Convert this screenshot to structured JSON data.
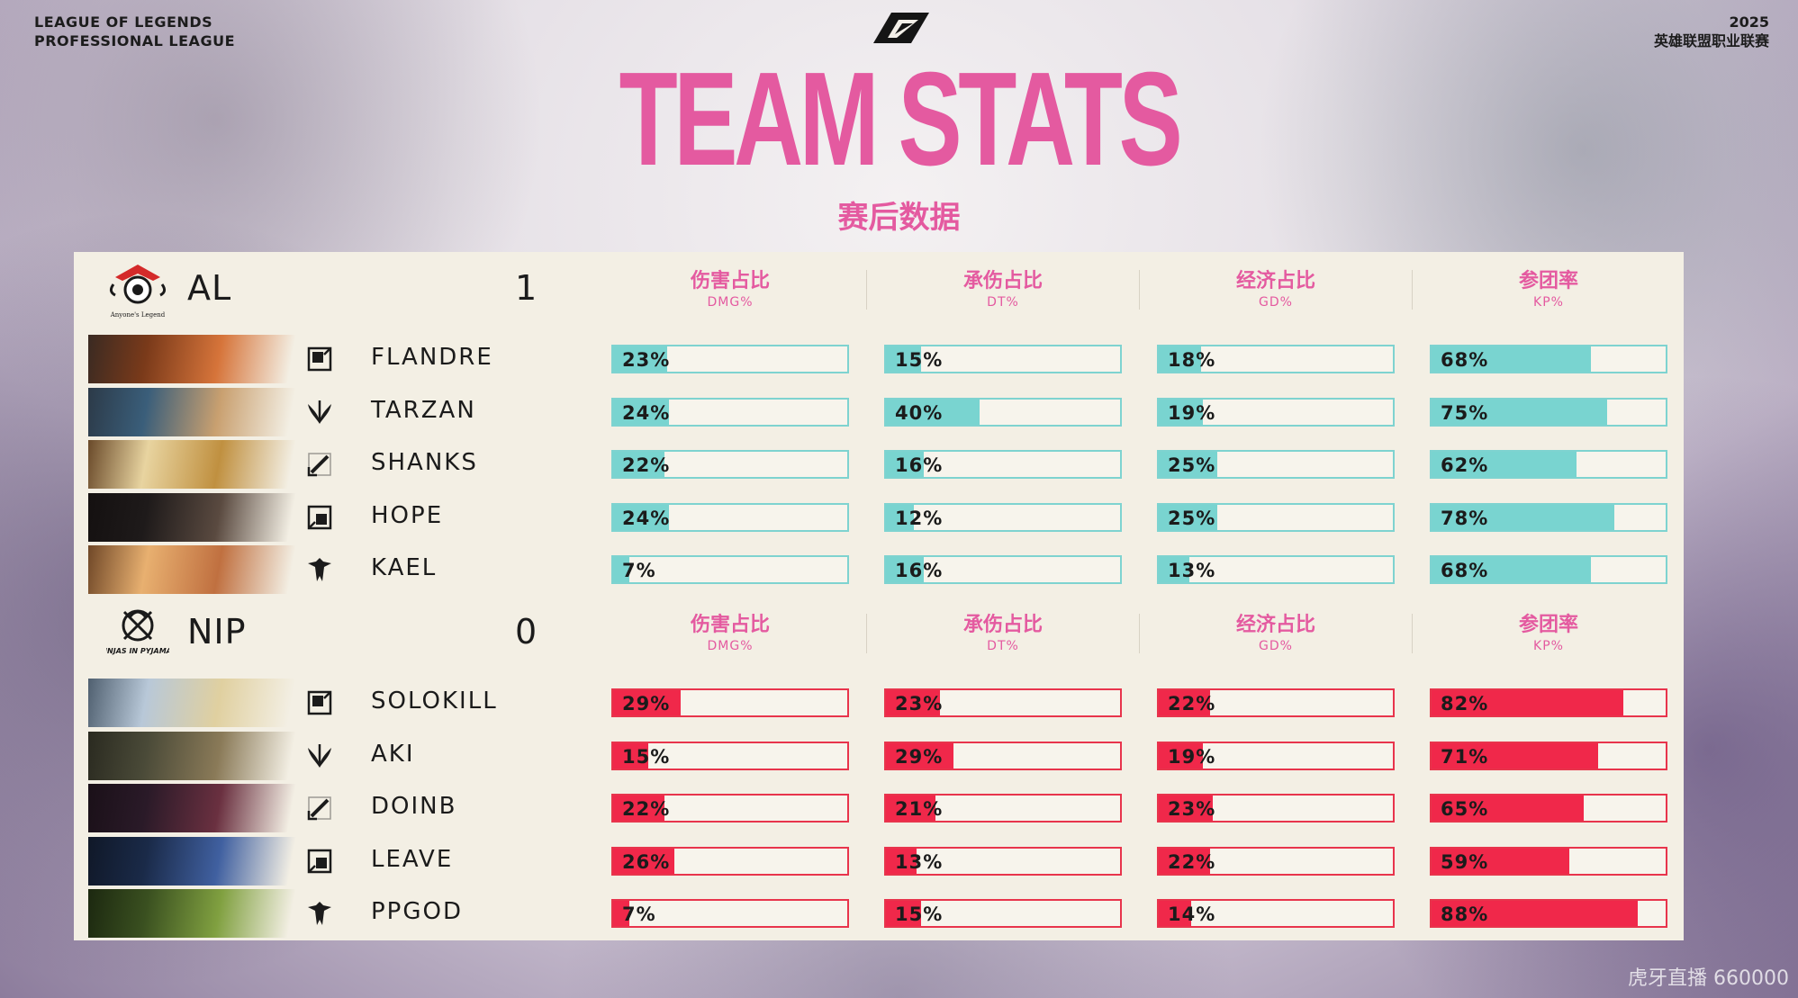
{
  "header": {
    "left_line1": "LEAGUE OF LEGENDS",
    "left_line2": "PROFESSIONAL LEAGUE",
    "right_line1": "2025",
    "right_line2": "英雄联盟职业联赛",
    "title": "TEAM STATS",
    "subtitle": "赛后数据"
  },
  "columns": [
    {
      "zh": "伤害占比",
      "en": "DMG%"
    },
    {
      "zh": "承伤占比",
      "en": "DT%"
    },
    {
      "zh": "经济占比",
      "en": "GD%"
    },
    {
      "zh": "参团率",
      "en": "KP%"
    }
  ],
  "teams": [
    {
      "name": "AL",
      "score": "1",
      "logo_text": "Anyone's Legend",
      "color": "#79d4d0",
      "players": [
        {
          "name": "FLANDRE",
          "role_icon": "top-lane-icon",
          "stats": [
            {
              "label": "23%",
              "value": 23
            },
            {
              "label": "15%",
              "value": 15
            },
            {
              "label": "18%",
              "value": 18
            },
            {
              "label": "68%",
              "value": 68
            }
          ]
        },
        {
          "name": "TARZAN",
          "role_icon": "jungle-icon",
          "stats": [
            {
              "label": "24%",
              "value": 24
            },
            {
              "label": "40%",
              "value": 40
            },
            {
              "label": "19%",
              "value": 19
            },
            {
              "label": "75%",
              "value": 75
            }
          ]
        },
        {
          "name": "SHANKS",
          "role_icon": "mid-lane-icon",
          "stats": [
            {
              "label": "22%",
              "value": 22
            },
            {
              "label": "16%",
              "value": 16
            },
            {
              "label": "25%",
              "value": 25
            },
            {
              "label": "62%",
              "value": 62
            }
          ]
        },
        {
          "name": "HOPE",
          "role_icon": "bot-lane-icon",
          "stats": [
            {
              "label": "24%",
              "value": 24
            },
            {
              "label": "12%",
              "value": 12
            },
            {
              "label": "25%",
              "value": 25
            },
            {
              "label": "78%",
              "value": 78
            }
          ]
        },
        {
          "name": "KAEL",
          "role_icon": "support-icon",
          "stats": [
            {
              "label": "7%",
              "value": 7
            },
            {
              "label": "16%",
              "value": 16
            },
            {
              "label": "13%",
              "value": 13
            },
            {
              "label": "68%",
              "value": 68
            }
          ]
        }
      ]
    },
    {
      "name": "NIP",
      "score": "0",
      "logo_text": "NINJAS IN PYJAMAS",
      "color": "#f0284a",
      "players": [
        {
          "name": "SOLOKILL",
          "role_icon": "top-lane-icon",
          "stats": [
            {
              "label": "29%",
              "value": 29
            },
            {
              "label": "23%",
              "value": 23
            },
            {
              "label": "22%",
              "value": 22
            },
            {
              "label": "82%",
              "value": 82
            }
          ]
        },
        {
          "name": "AKI",
          "role_icon": "jungle-icon",
          "stats": [
            {
              "label": "15%",
              "value": 15
            },
            {
              "label": "29%",
              "value": 29
            },
            {
              "label": "19%",
              "value": 19
            },
            {
              "label": "71%",
              "value": 71
            }
          ]
        },
        {
          "name": "DOINB",
          "role_icon": "mid-lane-icon",
          "stats": [
            {
              "label": "22%",
              "value": 22
            },
            {
              "label": "21%",
              "value": 21
            },
            {
              "label": "23%",
              "value": 23
            },
            {
              "label": "65%",
              "value": 65
            }
          ]
        },
        {
          "name": "LEAVE",
          "role_icon": "bot-lane-icon",
          "stats": [
            {
              "label": "26%",
              "value": 26
            },
            {
              "label": "13%",
              "value": 13
            },
            {
              "label": "22%",
              "value": 22
            },
            {
              "label": "59%",
              "value": 59
            }
          ]
        },
        {
          "name": "PPGOD",
          "role_icon": "support-icon",
          "stats": [
            {
              "label": "7%",
              "value": 7
            },
            {
              "label": "15%",
              "value": 15
            },
            {
              "label": "14%",
              "value": 14
            },
            {
              "label": "88%",
              "value": 88
            }
          ]
        }
      ]
    }
  ],
  "watermark": "虎牙直播 660000"
}
